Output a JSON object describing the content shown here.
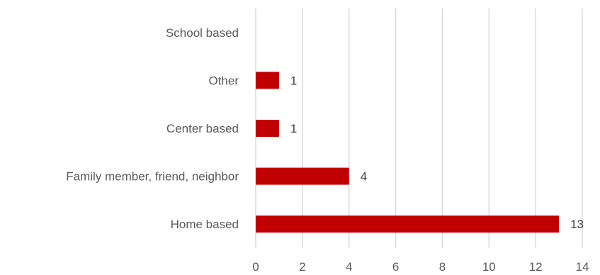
{
  "chart_data": {
    "type": "bar",
    "orientation": "horizontal",
    "title": "",
    "xlabel": "",
    "ylabel": "",
    "categories": [
      "School based",
      "Other",
      "Center based",
      "Family member, friend, neighbor",
      "Home based"
    ],
    "values": [
      0,
      1,
      1,
      4,
      13
    ],
    "data_labels": [
      "",
      "1",
      "1",
      "4",
      "13"
    ],
    "xlim": [
      0,
      14
    ],
    "x_ticks": [
      0,
      2,
      4,
      6,
      8,
      10,
      12,
      14
    ],
    "x_tick_labels": [
      "0",
      "2",
      "4",
      "6",
      "8",
      "10",
      "12",
      "14"
    ],
    "grid": true,
    "legend": "none",
    "bar_color": "#c00000",
    "grid_color": "#d9d9d9",
    "text_color": "#595959"
  }
}
